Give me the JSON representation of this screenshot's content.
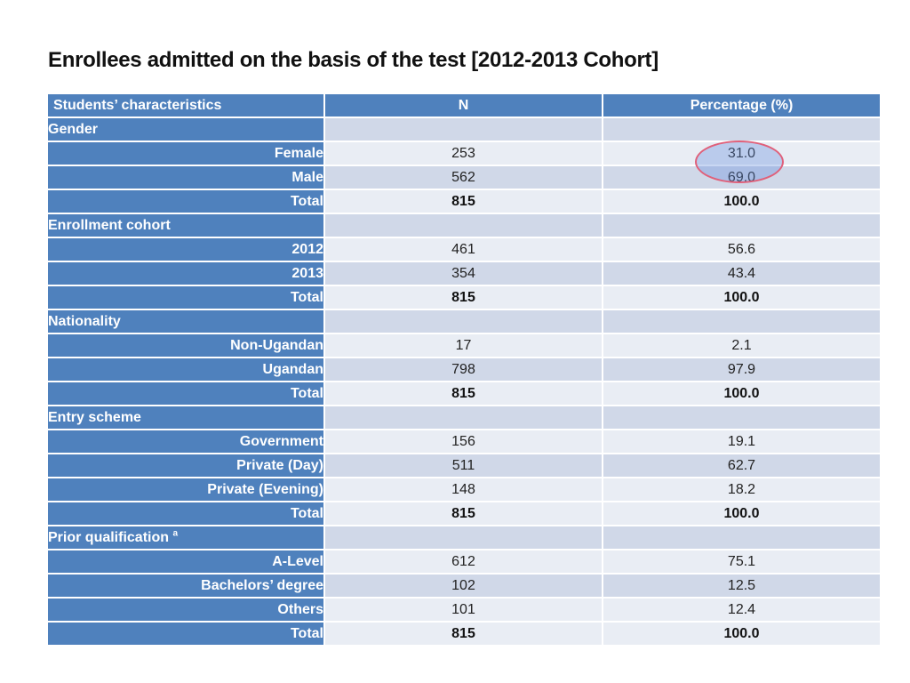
{
  "title": "Enrollees admitted on the basis of the test [2012-2013 Cohort]",
  "table": {
    "headers": [
      "Students’ characteristics",
      "N",
      "Percentage (%)"
    ],
    "groups": [
      {
        "name": "Gender",
        "rows": [
          {
            "label": "Female",
            "n": "253",
            "pct": "31.0"
          },
          {
            "label": "Male",
            "n": "562",
            "pct": "69.0"
          },
          {
            "label": "Total",
            "n": "815",
            "pct": "100.0"
          }
        ]
      },
      {
        "name": "Enrollment cohort",
        "rows": [
          {
            "label": "2012",
            "n": "461",
            "pct": "56.6"
          },
          {
            "label": "2013",
            "n": "354",
            "pct": "43.4"
          },
          {
            "label": "Total",
            "n": "815",
            "pct": "100.0"
          }
        ]
      },
      {
        "name": "Nationality",
        "rows": [
          {
            "label": "Non-Ugandan",
            "n": "17",
            "pct": "2.1"
          },
          {
            "label": "Ugandan",
            "n": "798",
            "pct": "97.9"
          },
          {
            "label": "Total",
            "n": "815",
            "pct": "100.0"
          }
        ]
      },
      {
        "name": "Entry scheme",
        "rows": [
          {
            "label": "Government",
            "n": "156",
            "pct": "19.1"
          },
          {
            "label": "Private (Day)",
            "n": "511",
            "pct": "62.7"
          },
          {
            "label": "Private (Evening)",
            "n": "148",
            "pct": "18.2"
          },
          {
            "label": "Total",
            "n": "815",
            "pct": "100.0"
          }
        ]
      },
      {
        "name": "Prior qualification",
        "superscript": "a",
        "rows": [
          {
            "label": "A-Level",
            "n": "612",
            "pct": "75.1"
          },
          {
            "label": "Bachelors’ degree",
            "n": "102",
            "pct": "12.5"
          },
          {
            "label": "Others",
            "n": "101",
            "pct": "12.4"
          },
          {
            "label": "Total",
            "n": "815",
            "pct": "100.0"
          }
        ]
      }
    ]
  },
  "colors": {
    "header_blue": "#4f81bd",
    "row_dark": "#d0d8e8",
    "row_light": "#e9edf4",
    "highlight_outline": "#e0607a"
  }
}
